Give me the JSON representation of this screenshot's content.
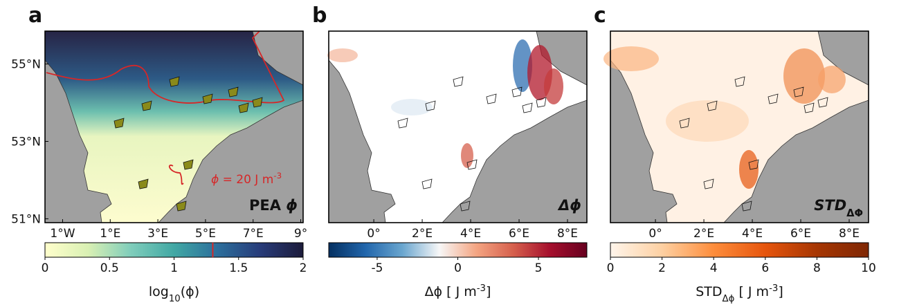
{
  "panels": [
    {
      "label": "a",
      "kind": "pea",
      "annotation": [
        {
          "text": "PEA "
        },
        {
          "text": "ϕ",
          "italic": true
        }
      ],
      "contour_label": [
        {
          "text": "ϕ",
          "italic": true
        },
        {
          "text": " = 20 J m"
        },
        {
          "text": "-3",
          "sup": true
        }
      ],
      "xlim": [
        -1.74,
        9.1
      ],
      "ylim": [
        50.9,
        55.85
      ],
      "xticks": [
        {
          "value": -1,
          "label": "1°W"
        },
        {
          "value": 1,
          "label": "1°E"
        },
        {
          "value": 3,
          "label": "3°E"
        },
        {
          "value": 5,
          "label": "5°E"
        },
        {
          "value": 7,
          "label": "7°E"
        },
        {
          "value": 9,
          "label": "9°"
        }
      ],
      "yticks": [
        {
          "value": 55,
          "label": "55°N"
        },
        {
          "value": 53,
          "label": "53°N"
        },
        {
          "value": 51,
          "label": "51°N"
        }
      ],
      "colorbar": {
        "lim": [
          0,
          2
        ],
        "ticks": [
          0,
          0.5,
          1,
          1.5,
          2
        ],
        "marker": 1.3,
        "marker_color": "#d62728",
        "colors": [
          "#ffffcc",
          "#d9f0b3",
          "#7fcdbb",
          "#41a8a4",
          "#2c6f9c",
          "#283c7a",
          "#1c1b3a"
        ],
        "label": [
          {
            "text": "log"
          },
          {
            "text": "10",
            "sub": true
          },
          {
            "text": "(ϕ)"
          }
        ]
      }
    },
    {
      "label": "b",
      "kind": "diff",
      "annotation": [
        {
          "text": "Δϕ",
          "italic": true
        }
      ],
      "xlim": [
        -1.86,
        8.8
      ],
      "ylim": [
        50.9,
        55.85
      ],
      "xticks": [
        {
          "value": 0,
          "label": "0°"
        },
        {
          "value": 2,
          "label": "2°E"
        },
        {
          "value": 4,
          "label": "4°E"
        },
        {
          "value": 6,
          "label": "6°E"
        },
        {
          "value": 8,
          "label": "8°E"
        }
      ],
      "yticks": [],
      "colorbar": {
        "lim": [
          -8,
          8
        ],
        "ticks": [
          -5,
          0,
          5
        ],
        "colors": [
          "#053061",
          "#2166ac",
          "#6aa6cf",
          "#f7f7f7",
          "#f4a582",
          "#d6604d",
          "#a50f2d",
          "#67001f"
        ],
        "label": [
          {
            "text": "Δϕ [ J m"
          },
          {
            "text": "-3",
            "sup": true
          },
          {
            "text": "]"
          }
        ]
      }
    },
    {
      "label": "c",
      "kind": "std",
      "annotation": [
        {
          "text": "STD",
          "italic": true
        },
        {
          "text": "ΔΦ",
          "sub": true
        }
      ],
      "xlim": [
        -1.86,
        8.8
      ],
      "ylim": [
        50.9,
        55.85
      ],
      "xticks": [
        {
          "value": 0,
          "label": "0°"
        },
        {
          "value": 2,
          "label": "2°E"
        },
        {
          "value": 4,
          "label": "4°E"
        },
        {
          "value": 6,
          "label": "6°E"
        },
        {
          "value": 8,
          "label": "8°E"
        }
      ],
      "yticks": [],
      "colorbar": {
        "lim": [
          0,
          10
        ],
        "ticks": [
          0,
          2,
          4,
          6,
          8,
          10
        ],
        "colors": [
          "#fff5eb",
          "#fdd0a2",
          "#fd8d3c",
          "#e6550d",
          "#a63603",
          "#7f2704"
        ],
        "label": [
          {
            "text": "STD"
          },
          {
            "text": "Δϕ",
            "sub": true
          },
          {
            "text": " [ J m"
          },
          {
            "text": "-3",
            "sup": true
          },
          {
            "text": "]"
          }
        ]
      }
    }
  ]
}
